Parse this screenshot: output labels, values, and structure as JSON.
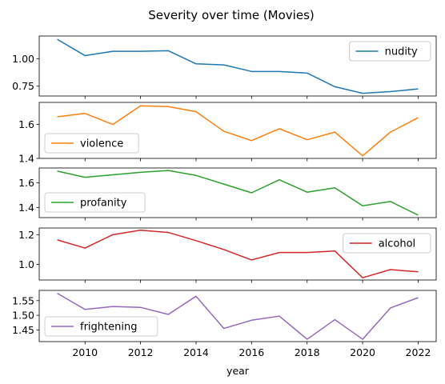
{
  "chart_data": {
    "type": "line",
    "title": "Severity over time (Movies)",
    "xlabel": "year",
    "x": [
      2009,
      2010,
      2011,
      2012,
      2013,
      2014,
      2015,
      2016,
      2017,
      2018,
      2019,
      2020,
      2021,
      2022
    ],
    "xticks": [
      2010,
      2012,
      2014,
      2016,
      2018,
      2020,
      2022
    ],
    "xlim": [
      2008.35,
      2022.65
    ],
    "grid": false,
    "panels": [
      {
        "name": "nudity",
        "color": "#1f77b4",
        "legend_position": "top-right",
        "values": [
          1.18,
          1.03,
          1.07,
          1.07,
          1.075,
          0.955,
          0.945,
          0.885,
          0.885,
          0.87,
          0.745,
          0.685,
          0.7,
          0.725
        ],
        "ylim": [
          0.66,
          1.21
        ],
        "yticks": [
          0.75,
          1.0
        ],
        "ytick_labels": [
          "0.75",
          "1.00"
        ]
      },
      {
        "name": "violence",
        "color": "#ff7f0e",
        "legend_position": "bottom-left",
        "values": [
          1.645,
          1.665,
          1.6,
          1.71,
          1.705,
          1.675,
          1.56,
          1.505,
          1.575,
          1.51,
          1.555,
          1.415,
          1.555,
          1.64
        ],
        "ylim": [
          1.4,
          1.73
        ],
        "yticks": [
          1.4,
          1.6
        ],
        "ytick_labels": [
          "1.4",
          "1.6"
        ]
      },
      {
        "name": "profanity",
        "color": "#2ca02c",
        "legend_position": "bottom-left",
        "values": [
          1.695,
          1.645,
          1.665,
          1.685,
          1.7,
          1.66,
          1.59,
          1.52,
          1.625,
          1.525,
          1.56,
          1.415,
          1.45,
          1.34
        ],
        "ylim": [
          1.32,
          1.72
        ],
        "yticks": [
          1.4,
          1.6
        ],
        "ytick_labels": [
          "1.4",
          "1.6"
        ]
      },
      {
        "name": "alcohol",
        "color": "#d62728",
        "legend_position": "top-right",
        "values": [
          1.165,
          1.11,
          1.2,
          1.23,
          1.215,
          1.16,
          1.1,
          1.03,
          1.08,
          1.08,
          1.09,
          0.91,
          0.965,
          0.95
        ],
        "ylim": [
          0.895,
          1.245
        ],
        "yticks": [
          1.0,
          1.2
        ],
        "ytick_labels": [
          "1.0",
          "1.2"
        ]
      },
      {
        "name": "frightening",
        "color": "#9467bd",
        "legend_position": "bottom-left",
        "values": [
          1.575,
          1.52,
          1.53,
          1.527,
          1.503,
          1.565,
          1.455,
          1.483,
          1.497,
          1.418,
          1.485,
          1.418,
          1.525,
          1.56
        ],
        "ylim": [
          1.41,
          1.585
        ],
        "yticks": [
          1.45,
          1.5,
          1.55
        ],
        "ytick_labels": [
          "1.45",
          "1.50",
          "1.55"
        ]
      }
    ]
  }
}
